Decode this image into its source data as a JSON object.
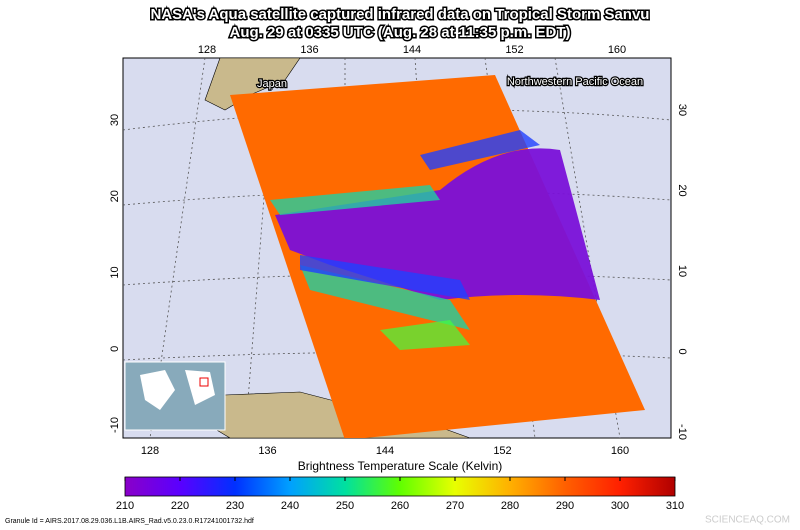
{
  "title": {
    "line1": "NASA's Aqua satellite captured infrared data on Tropical Storm Sanvu",
    "line2": "Aug. 29 at 0335 UTC (Aug. 28 at 11:35 p.m. EDT)"
  },
  "map": {
    "labels": [
      "Japan",
      "Northwestern Pacific Ocean"
    ],
    "lon_ticks": [
      128,
      136,
      144,
      152,
      160
    ],
    "lat_ticks": [
      30,
      20,
      10,
      0,
      -10
    ]
  },
  "colorbar": {
    "title": "Brightness Temperature Scale (Kelvin)",
    "ticks": [
      210,
      220,
      230,
      240,
      250,
      260,
      270,
      280,
      290,
      300,
      310
    ],
    "colors": [
      "#8a00c8",
      "#5a00ff",
      "#0030ff",
      "#00a0ff",
      "#00e0a0",
      "#60ff00",
      "#e8ff00",
      "#ffb000",
      "#ff6000",
      "#ff2000",
      "#b00000"
    ]
  },
  "granule": "Granule Id = AIRS.2017.08.29.036.L1B.AIRS_Rad.v5.0.23.0.R17241001732.hdf",
  "watermark": "SCIENCEAQ.COM"
}
